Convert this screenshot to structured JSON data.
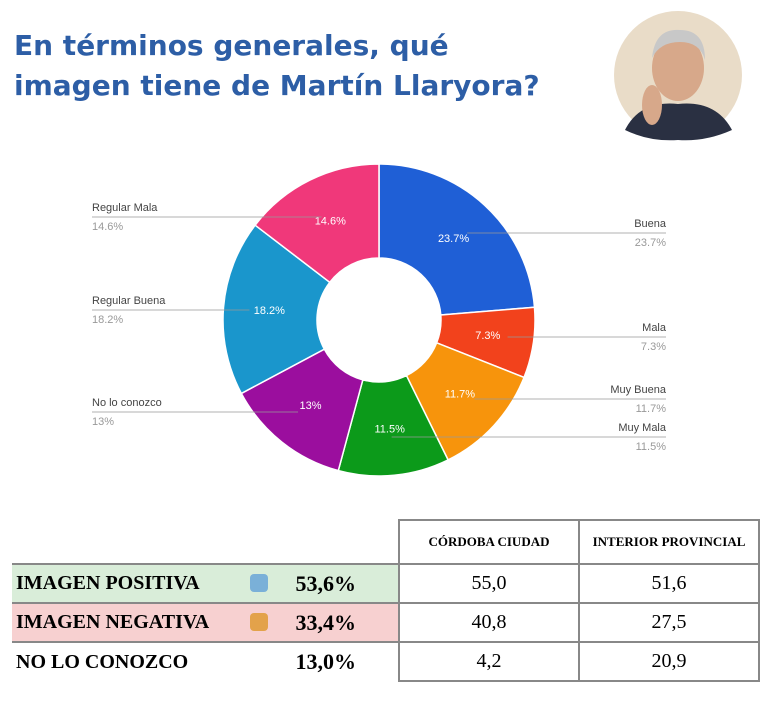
{
  "title": "En términos generales, qué imagen tiene de Martín Llaryora?",
  "chart_data": {
    "type": "donut",
    "categories": [
      "Buena",
      "Mala",
      "Muy Buena",
      "Muy Mala",
      "No lo conozco",
      "Regular Buena",
      "Regular Mala"
    ],
    "values": [
      23.7,
      7.3,
      11.7,
      11.5,
      13,
      18.2,
      14.6
    ],
    "value_labels": [
      "23.7%",
      "7.3%",
      "11.7%",
      "11.5%",
      "13%",
      "18.2%",
      "14.6%"
    ],
    "colors": [
      "#1f5fd6",
      "#f2421c",
      "#f7940c",
      "#0c9a1a",
      "#9b0e9e",
      "#1a96cc",
      "#f0387a"
    ]
  },
  "table": {
    "headers": [
      "CÓRDOBA CIUDAD",
      "INTERIOR PROVINCIAL"
    ],
    "rows": [
      [
        "IMAGEN POSITIVA",
        "53,6%",
        "55,0",
        "51,6"
      ],
      [
        "IMAGEN NEGATIVA",
        "33,4%",
        "40,8",
        "27,5"
      ],
      [
        "NO LO CONOZCO",
        "13,0%",
        "4,2",
        "20,9"
      ]
    ]
  }
}
